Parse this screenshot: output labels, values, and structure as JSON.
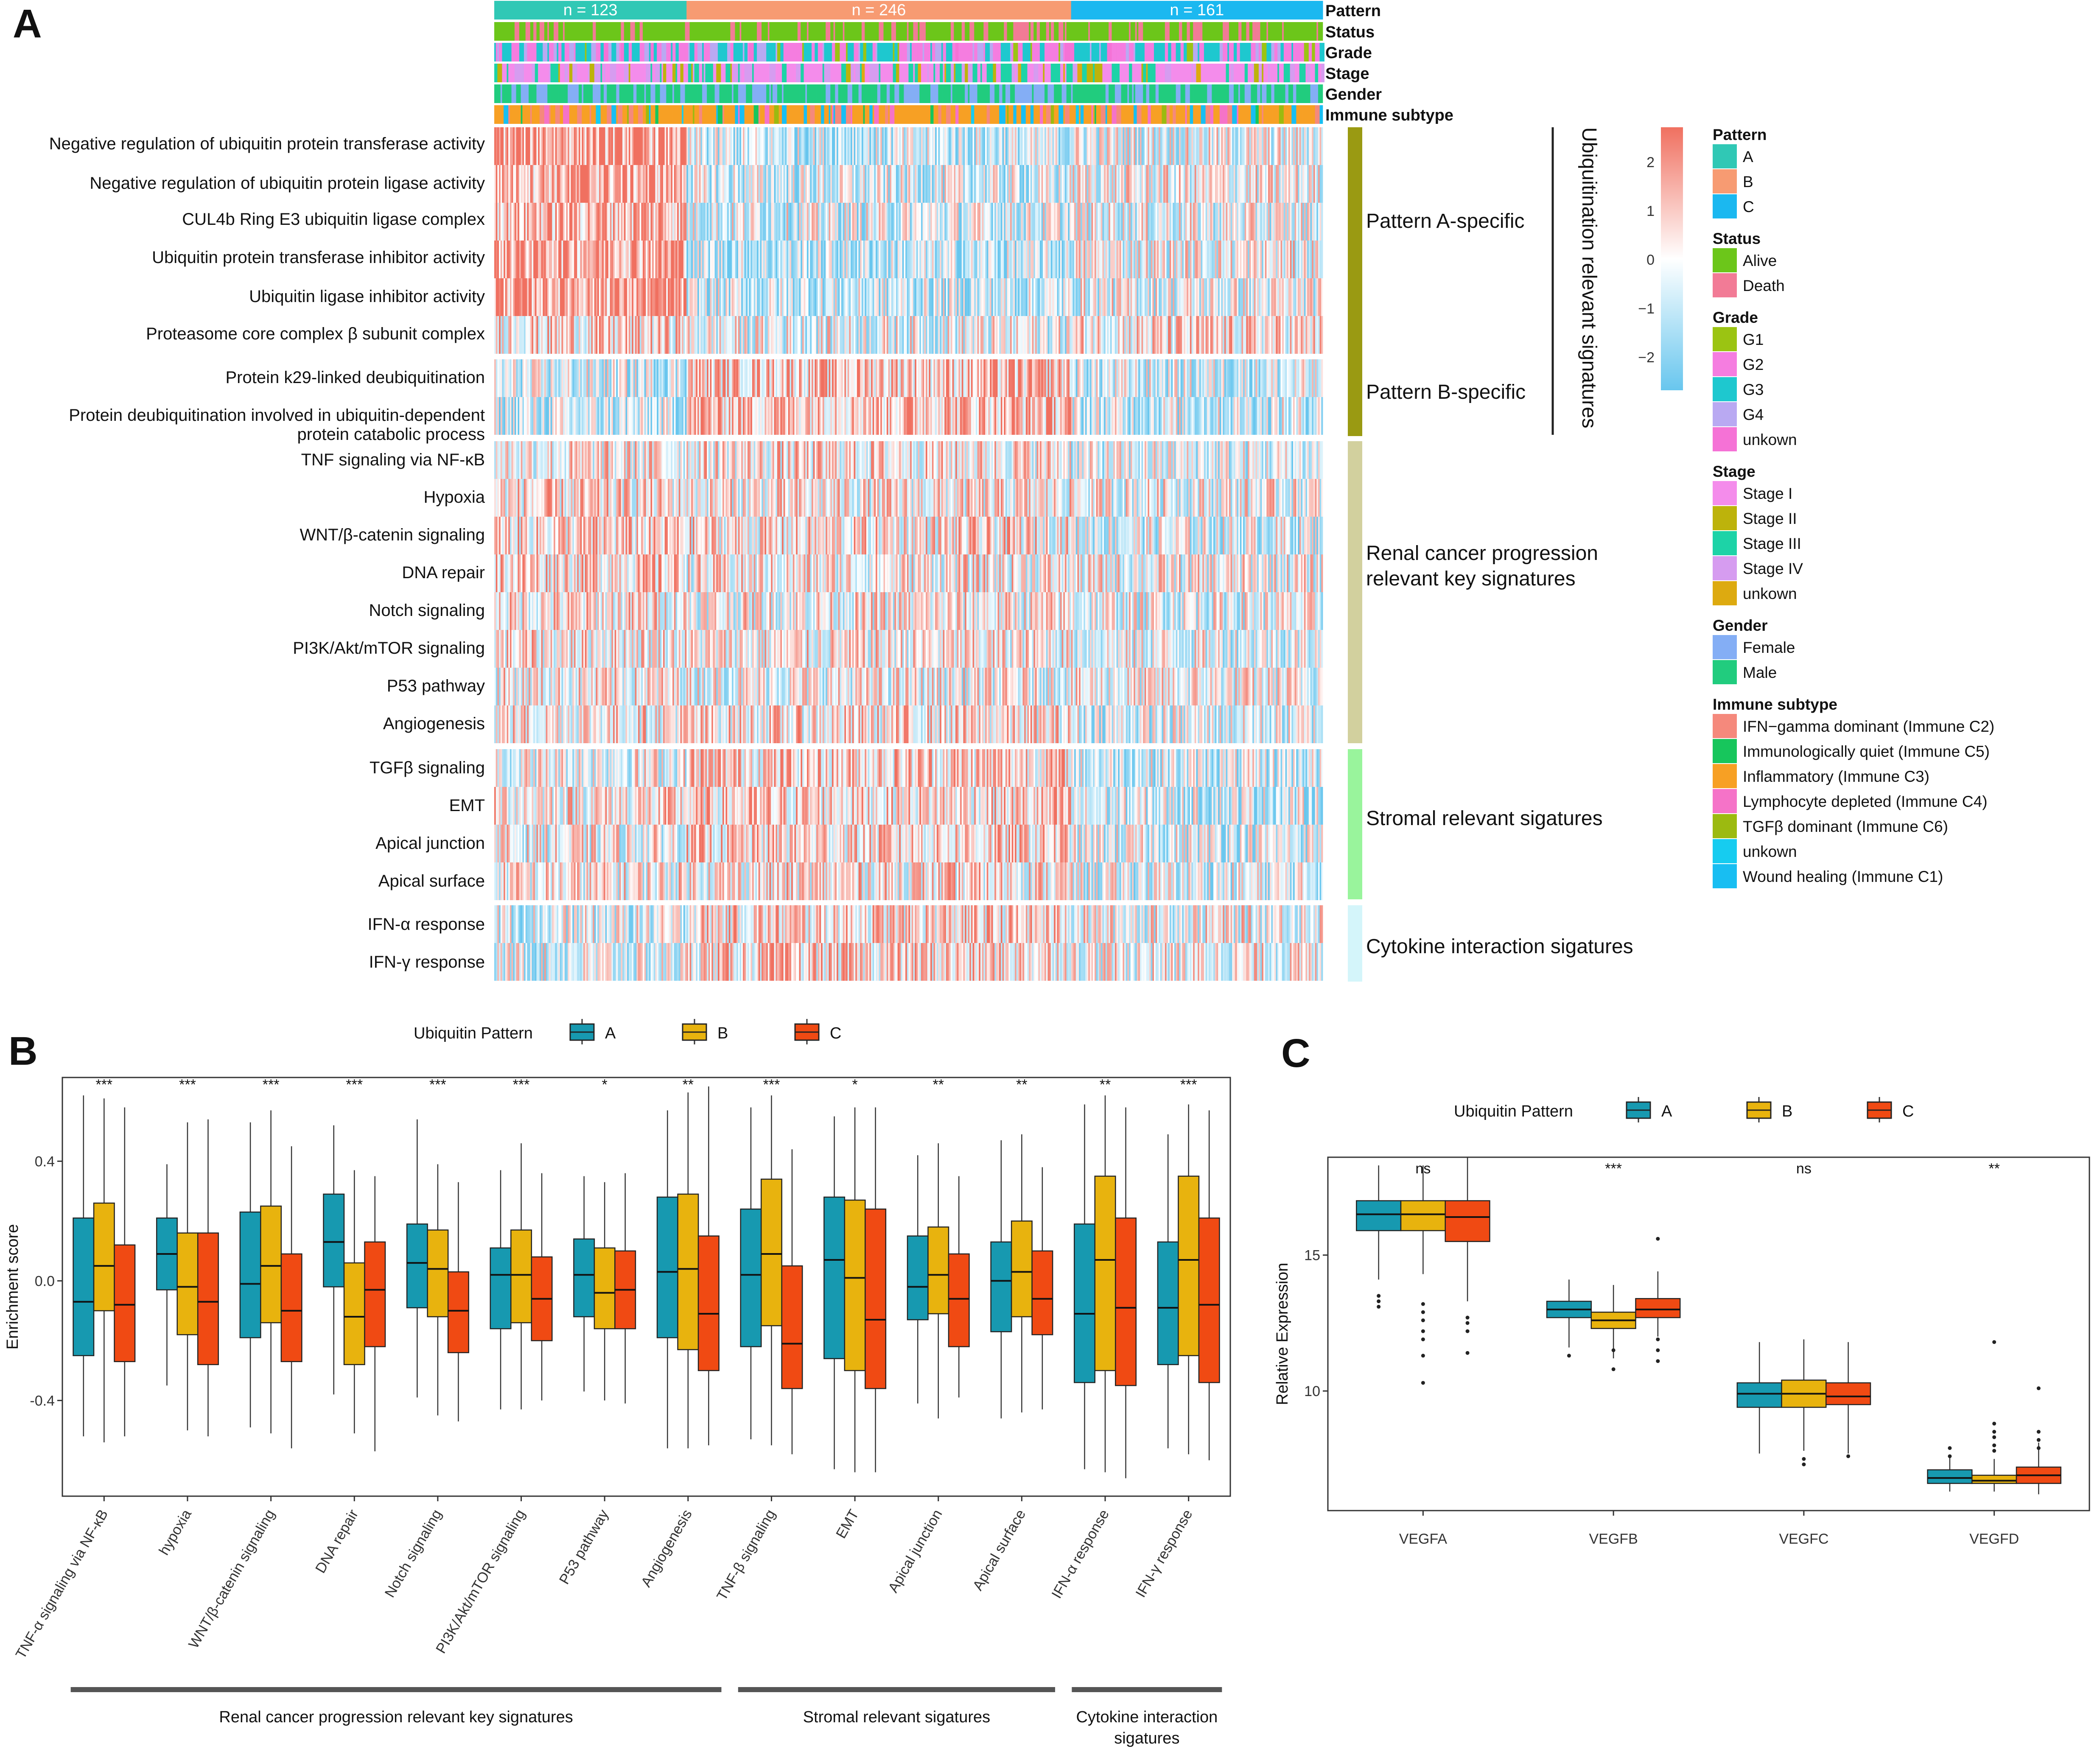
{
  "panel_labels": {
    "a": "A",
    "b": "B",
    "c": "C"
  },
  "colors": {
    "patternA": "#30C8B5",
    "patternB": "#F79B72",
    "patternC": "#1BB8F0",
    "boxA": "#1799B0",
    "boxB": "#E8B30E",
    "boxC": "#F04A13",
    "heatHigh": "#F07060",
    "heatMid": "#FFFFFF",
    "heatLow": "#68C6EE",
    "sideUbiq": "#9A9A12",
    "sideRenal": "#D2D09E",
    "sideStromal": "#99F49C",
    "sideCytokine": "#D4F5FA"
  },
  "panelA": {
    "annotation_rows": [
      "Pattern",
      "Status",
      "Grade",
      "Stage",
      "Gender",
      "Immune subtype"
    ],
    "pattern_counts": [
      "n = 123",
      "n = 246",
      "n = 161"
    ],
    "signature_rows": [
      "Negative regulation of ubiquitin protein transferase activity",
      "Negative regulation of ubiquitin protein ligase activity",
      "CUL4b Ring E3 ubiquitin ligase complex",
      "Ubiquitin protein transferase inhibitor activity",
      "Ubiquitin ligase inhibitor activity",
      "Proteasome core complex β subunit complex",
      "Protein k29-linked deubiquitination",
      "Protein deubiquitination involved in ubiquitin-dependent",
      "protein catabolic process",
      "TNF signaling via NF-κB",
      "Hypoxia",
      "WNT/β-catenin signaling",
      "DNA repair",
      "Notch signaling",
      "PI3K/Akt/mTOR signaling",
      "P53 pathway",
      "Angiogenesis",
      "TGFβ signaling",
      "EMT",
      "Apical junction",
      "Apical surface",
      "IFN-α response",
      "IFN-γ response"
    ],
    "group_labels": [
      "Pattern  A-specific",
      "Pattern  B-specific",
      "Renal cancer progression",
      "relevant  key signatures",
      "Stromal relevant sigatures",
      "Cytokine interaction sigatures"
    ],
    "side_title": "Ubiquitination relevant signatures",
    "color_scale_ticks": [
      "2",
      "1",
      "0",
      "−1",
      "−2"
    ],
    "legend": [
      {
        "title": "Pattern",
        "items": [
          {
            "label": "A",
            "color": "#30C8B5"
          },
          {
            "label": "B",
            "color": "#F79B72"
          },
          {
            "label": "C",
            "color": "#1BB8F0"
          }
        ]
      },
      {
        "title": "Status",
        "items": [
          {
            "label": "Alive",
            "color": "#6CC61A"
          },
          {
            "label": "Death",
            "color": "#F27B96"
          }
        ]
      },
      {
        "title": "Grade",
        "items": [
          {
            "label": "G1",
            "color": "#9BC412"
          },
          {
            "label": "G2",
            "color": "#F57DE0"
          },
          {
            "label": "G3",
            "color": "#1EC8CF"
          },
          {
            "label": "G4",
            "color": "#B9A9F2"
          },
          {
            "label": "unkown",
            "color": "#F572D6"
          }
        ]
      },
      {
        "title": "Stage",
        "items": [
          {
            "label": "Stage I",
            "color": "#F48CEB"
          },
          {
            "label": "Stage II",
            "color": "#BDB30B"
          },
          {
            "label": "Stage III",
            "color": "#1DD3A7"
          },
          {
            "label": "Stage IV",
            "color": "#D69CF0"
          },
          {
            "label": "unkown",
            "color": "#DDAA10"
          }
        ]
      },
      {
        "title": "Gender",
        "items": [
          {
            "label": "Female",
            "color": "#84AEF5"
          },
          {
            "label": "Male",
            "color": "#21CC7E"
          }
        ]
      },
      {
        "title": "Immune subtype",
        "items": [
          {
            "label": "IFN−gamma dominant (Immune C2)",
            "color": "#F5897C"
          },
          {
            "label": "Immunologically quiet (Immune C5)",
            "color": "#17C65C"
          },
          {
            "label": "Inflammatory (Immune C3)",
            "color": "#F7A024"
          },
          {
            "label": "Lymphocyte depleted (Immune C4)",
            "color": "#F573C8"
          },
          {
            "label": "TGFβ dominant (Immune C6)",
            "color": "#9CBA10"
          },
          {
            "label": "unkown",
            "color": "#16CCF0"
          },
          {
            "label": "Wound healing (Immune C1)",
            "color": "#18BEF2"
          }
        ]
      }
    ]
  },
  "chart_data": [
    {
      "type": "box",
      "id": "panelB",
      "legend_title": "Ubiquitin Pattern",
      "series_names": [
        "A",
        "B",
        "C"
      ],
      "ylabel": "Enrichment score",
      "ylim": [
        -0.72,
        0.68
      ],
      "yticks": [
        "0.4",
        "0.0",
        "-0.4"
      ],
      "ytick_values": [
        0.4,
        0.0,
        -0.4
      ],
      "categories": [
        "TNF-α signaling via NF-κB",
        "hypoxia",
        "WNT/β-catenin signaling",
        "DNA repair",
        "Notch signaling",
        "PI3K/Akt/mTOR signaling",
        "P53 pathway",
        "Angiogenesis",
        "TNF-β signaling",
        "EMT",
        "Apical junction",
        "Apical surface",
        "IFN-α response",
        "IFN-γ response"
      ],
      "significance": [
        "***",
        "***",
        "***",
        "***",
        "***",
        "***",
        "*",
        "**",
        "***",
        "*",
        "**",
        "**",
        "**",
        "***"
      ],
      "boxes": [
        [
          [
            -0.52,
            -0.25,
            -0.07,
            0.21,
            0.62
          ],
          [
            -0.54,
            -0.1,
            0.05,
            0.26,
            0.61
          ],
          [
            -0.52,
            -0.27,
            -0.08,
            0.12,
            0.58
          ]
        ],
        [
          [
            -0.35,
            -0.03,
            0.09,
            0.21,
            0.39
          ],
          [
            -0.5,
            -0.18,
            -0.02,
            0.16,
            0.53
          ],
          [
            -0.52,
            -0.28,
            -0.07,
            0.16,
            0.54
          ]
        ],
        [
          [
            -0.49,
            -0.19,
            -0.01,
            0.23,
            0.53
          ],
          [
            -0.51,
            -0.14,
            0.05,
            0.25,
            0.57
          ],
          [
            -0.56,
            -0.27,
            -0.1,
            0.09,
            0.45
          ]
        ],
        [
          [
            -0.38,
            -0.02,
            0.13,
            0.29,
            0.52
          ],
          [
            -0.51,
            -0.28,
            -0.12,
            0.06,
            0.37
          ],
          [
            -0.57,
            -0.22,
            -0.03,
            0.13,
            0.35
          ]
        ],
        [
          [
            -0.39,
            -0.09,
            0.06,
            0.19,
            0.54
          ],
          [
            -0.45,
            -0.12,
            0.04,
            0.17,
            0.39
          ],
          [
            -0.47,
            -0.24,
            -0.1,
            0.03,
            0.33
          ]
        ],
        [
          [
            -0.43,
            -0.16,
            0.02,
            0.11,
            0.37
          ],
          [
            -0.43,
            -0.14,
            0.02,
            0.17,
            0.46
          ],
          [
            -0.4,
            -0.2,
            -0.06,
            0.08,
            0.36
          ]
        ],
        [
          [
            -0.37,
            -0.12,
            0.02,
            0.14,
            0.35
          ],
          [
            -0.4,
            -0.16,
            -0.04,
            0.11,
            0.33
          ],
          [
            -0.41,
            -0.16,
            -0.03,
            0.1,
            0.36
          ]
        ],
        [
          [
            -0.56,
            -0.19,
            0.03,
            0.28,
            0.57
          ],
          [
            -0.56,
            -0.23,
            0.04,
            0.29,
            0.63
          ],
          [
            -0.55,
            -0.3,
            -0.11,
            0.15,
            0.65
          ]
        ],
        [
          [
            -0.53,
            -0.22,
            0.02,
            0.24,
            0.58
          ],
          [
            -0.55,
            -0.15,
            0.09,
            0.34,
            0.62
          ],
          [
            -0.58,
            -0.36,
            -0.21,
            0.05,
            0.44
          ]
        ],
        [
          [
            -0.63,
            -0.26,
            0.07,
            0.28,
            0.55
          ],
          [
            -0.64,
            -0.3,
            0.01,
            0.27,
            0.58
          ],
          [
            -0.64,
            -0.36,
            -0.13,
            0.24,
            0.58
          ]
        ],
        [
          [
            -0.41,
            -0.13,
            -0.02,
            0.15,
            0.42
          ],
          [
            -0.46,
            -0.11,
            0.02,
            0.18,
            0.46
          ],
          [
            -0.39,
            -0.22,
            -0.06,
            0.09,
            0.35
          ]
        ],
        [
          [
            -0.46,
            -0.17,
            0.0,
            0.13,
            0.47
          ],
          [
            -0.44,
            -0.12,
            0.03,
            0.2,
            0.49
          ],
          [
            -0.43,
            -0.18,
            -0.06,
            0.1,
            0.38
          ]
        ],
        [
          [
            -0.63,
            -0.34,
            -0.11,
            0.19,
            0.59
          ],
          [
            -0.64,
            -0.3,
            0.07,
            0.35,
            0.62
          ],
          [
            -0.66,
            -0.35,
            -0.09,
            0.21,
            0.58
          ]
        ],
        [
          [
            -0.56,
            -0.28,
            -0.09,
            0.13,
            0.49
          ],
          [
            -0.58,
            -0.25,
            0.07,
            0.35,
            0.59
          ],
          [
            -0.6,
            -0.34,
            -0.08,
            0.21,
            0.57
          ]
        ]
      ],
      "groups": [
        {
          "label": "Renal cancer progression relevant  key signatures",
          "from": 0,
          "to": 7
        },
        {
          "label": "Stromal relevant sigatures",
          "from": 8,
          "to": 11
        },
        {
          "label": "Cytokine interaction",
          "label2": "sigatures",
          "from": 12,
          "to": 13
        }
      ]
    },
    {
      "type": "box",
      "id": "panelC",
      "legend_title": "Ubiquitin Pattern",
      "series_names": [
        "A",
        "B",
        "C"
      ],
      "ylabel": "Relative Expression",
      "ylim": [
        5.6,
        18.6
      ],
      "yticks": [
        "15",
        "10"
      ],
      "ytick_values": [
        15,
        10
      ],
      "categories": [
        "VEGFA",
        "VEGFB",
        "VEGFC",
        "VEGFD"
      ],
      "significance": [
        "ns",
        "***",
        "ns",
        "**"
      ],
      "boxes": [
        [
          [
            14.1,
            15.9,
            16.5,
            17.0,
            18.3
          ],
          [
            14.3,
            15.9,
            16.5,
            17.0,
            18.3
          ],
          [
            13.3,
            15.5,
            16.4,
            17.0,
            18.6
          ]
        ],
        [
          [
            11.6,
            12.7,
            13.0,
            13.3,
            14.1
          ],
          [
            11.2,
            12.3,
            12.6,
            12.9,
            13.9
          ],
          [
            12.0,
            12.7,
            13.0,
            13.4,
            14.4
          ]
        ],
        [
          [
            7.7,
            9.4,
            9.9,
            10.3,
            11.8
          ],
          [
            7.8,
            9.4,
            9.9,
            10.4,
            11.9
          ],
          [
            7.7,
            9.5,
            9.8,
            10.3,
            11.8
          ]
        ],
        [
          [
            6.3,
            6.6,
            6.8,
            7.1,
            7.6
          ],
          [
            6.3,
            6.6,
            6.7,
            6.9,
            7.5
          ],
          [
            6.2,
            6.6,
            6.9,
            7.2,
            8.1
          ]
        ]
      ],
      "outliers": [
        [
          [
            13.3,
            13.5,
            13.1
          ],
          [
            13.2,
            12.9,
            12.6,
            12.2,
            11.9,
            11.3,
            10.3
          ],
          [
            12.7,
            12.5,
            12.2,
            11.4
          ]
        ],
        [
          [
            11.3
          ],
          [
            11.5,
            10.8
          ],
          [
            15.6,
            11.9,
            11.5,
            11.1
          ]
        ],
        [
          [],
          [
            7.5,
            7.3
          ],
          [
            7.6
          ]
        ],
        [
          [
            7.9,
            7.6
          ],
          [
            11.8,
            8.8,
            8.5,
            8.3,
            8.0,
            7.8
          ],
          [
            10.1,
            8.5,
            8.2,
            7.9
          ]
        ]
      ]
    }
  ]
}
